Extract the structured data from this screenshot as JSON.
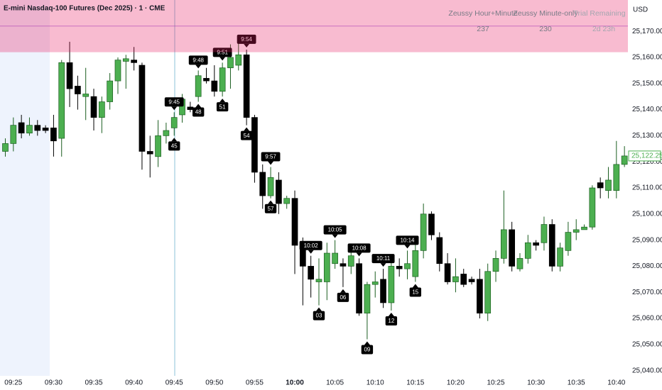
{
  "title": "E-mini Nasdaq-100 Futures (Dec 2025) · 1 · CME",
  "currency": "USD",
  "indicator_table": {
    "headers": [
      "Zeussy Hour+Minute",
      "Zeussy Minute-only",
      "Trial Remaining"
    ],
    "values": [
      "237",
      "230",
      "2d 23h"
    ]
  },
  "chart_data": {
    "type": "candlestick",
    "categories": [
      null,
      "09:25",
      null,
      null,
      null,
      null,
      "09:30",
      null,
      null,
      null,
      null,
      "09:35",
      null,
      null,
      null,
      null,
      "09:40",
      null,
      null,
      null,
      null,
      "09:45",
      null,
      null,
      null,
      null,
      "09:50",
      null,
      null,
      null,
      null,
      "09:55",
      null,
      null,
      null,
      null,
      "10:00",
      null,
      null,
      null,
      null,
      "10:05",
      null,
      null,
      null,
      null,
      "10:10",
      null,
      null,
      null,
      null,
      "10:15",
      null,
      null,
      null,
      null,
      "10:20",
      null,
      null,
      null,
      null,
      "10:25",
      null,
      null,
      null,
      null,
      "10:30",
      null,
      null,
      null,
      null,
      "10:35",
      null,
      null,
      null,
      null,
      "10:40",
      null
    ],
    "open": [
      25124,
      25127,
      25135,
      25131,
      25134,
      25133,
      25133,
      25129,
      25158,
      25149,
      25145,
      25145,
      25137,
      25143,
      25151,
      25158.5,
      25159,
      25157,
      25124,
      25122,
      25130,
      25133,
      25138,
      25141,
      25145,
      25152,
      25151,
      25147,
      25156,
      25157,
      25161,
      25137,
      25116,
      25107,
      25113,
      25104,
      25106,
      25088,
      25080,
      25074,
      25074,
      25081,
      25081,
      25080,
      25081,
      25062,
      25073,
      25075,
      25066,
      25080,
      25079,
      25076,
      25086,
      25100,
      25091,
      25081,
      25074,
      25077,
      25075,
      25075,
      25062,
      25078,
      25083,
      25094,
      25079,
      25083,
      25089,
      25089,
      25096,
      25080,
      25086,
      25093,
      25094,
      25095,
      25112,
      25109,
      25109,
      25119
    ],
    "high": [
      25129,
      25137,
      25138,
      25137,
      25136,
      25134,
      25138,
      25159,
      25166,
      25153,
      25156,
      25148,
      25145,
      25154,
      25160,
      25161,
      25164,
      25158,
      25130,
      25136,
      25135,
      25139,
      25146,
      25143,
      25155,
      25156,
      25157,
      25158,
      25165,
      25167,
      25163,
      25138,
      25119,
      25118,
      25116,
      25107,
      25109,
      25091,
      25084,
      25083,
      25089,
      25090,
      25083,
      25086,
      25083,
      25074,
      25078,
      25079,
      25082,
      25083,
      25086,
      25090,
      25104,
      25101,
      25093,
      25085,
      25083,
      25079,
      25076,
      25079,
      25081,
      25086,
      25109,
      25097,
      25085,
      25092,
      25090,
      25099,
      25098,
      25089,
      25097,
      25098,
      25096,
      25111,
      25114,
      25118,
      25128,
      25126
    ],
    "low": [
      25122,
      25124,
      25129,
      25130,
      25130,
      25131,
      25122,
      25122,
      25141,
      25140,
      25136,
      25132,
      25131,
      25140,
      25146,
      25148,
      25155,
      25117,
      25114,
      25118,
      25127,
      25130,
      25135,
      25139,
      25143,
      25150,
      25145,
      25145,
      25148,
      25155,
      25134,
      25112,
      25102,
      25106,
      25100,
      25102,
      25077,
      25065,
      25068,
      25065,
      25067,
      25079,
      25072,
      25077,
      25061,
      25052,
      25068,
      25064,
      25063,
      25076,
      25075,
      25074,
      25083,
      25090,
      25078,
      25073,
      25070,
      25072,
      25073,
      25060,
      25059,
      25074,
      25081,
      25078,
      25078,
      25081,
      25086,
      25086,
      25078,
      25078,
      25084,
      25090,
      25094,
      25094,
      25106,
      25106,
      25106,
      25118
    ],
    "close": [
      25127,
      25134,
      25131,
      25134,
      25132,
      25132,
      25128,
      25158,
      25148,
      25146,
      25146,
      25137,
      25143,
      25151,
      25159,
      25159.5,
      25158,
      25124,
      25123,
      25130,
      25132,
      25137,
      25144,
      25140,
      25153,
      25151,
      25147,
      25156,
      25160,
      25161,
      25137,
      25116,
      25107,
      25114,
      25104,
      25106,
      25088,
      25080,
      25075,
      25075,
      25085,
      25085,
      25080,
      25084,
      25062,
      25073,
      25074,
      25066,
      25080,
      25079,
      25081,
      25086,
      25100,
      25092,
      25081,
      25074,
      25076,
      25073,
      25074,
      25062,
      25078,
      25083,
      25094,
      25080,
      25083,
      25089,
      25088,
      25096,
      25080,
      25087,
      25093,
      25094,
      25095,
      25110,
      25110,
      25113,
      25119,
      25122.25
    ],
    "up_color": "#4caf50",
    "down_color": "#000000",
    "ylim": [
      25038,
      25182
    ],
    "yticks": [
      {
        "value": 25040,
        "label": "25,040.00"
      },
      {
        "value": 25050,
        "label": "25,050.00"
      },
      {
        "value": 25060,
        "label": "25,060.00"
      },
      {
        "value": 25070,
        "label": "25,070.00"
      },
      {
        "value": 25080,
        "label": "25,080.00"
      },
      {
        "value": 25090,
        "label": "25,090.00"
      },
      {
        "value": 25100,
        "label": "25,100.00"
      },
      {
        "value": 25110,
        "label": "25,110.00"
      },
      {
        "value": 25120,
        "label": "25,120.00"
      },
      {
        "value": 25130,
        "label": "25,130.00"
      },
      {
        "value": 25140,
        "label": "25,140.00"
      },
      {
        "value": 25150,
        "label": "25,150.00"
      },
      {
        "value": 25160,
        "label": "25,160.00"
      },
      {
        "value": 25170,
        "label": "25,170.00"
      }
    ],
    "last_price": {
      "value": 25122.25,
      "label": "25,122.25"
    },
    "zone": {
      "from": 25162,
      "line": 25172,
      "color": "#e91e63"
    },
    "annotations": [
      {
        "text": "9:45",
        "candle": 21,
        "position": "above"
      },
      {
        "text": "45",
        "candle": 21,
        "position": "below"
      },
      {
        "text": "9:48",
        "candle": 24,
        "position": "above"
      },
      {
        "text": "48",
        "candle": 24,
        "position": "below"
      },
      {
        "text": "9:51",
        "candle": 27,
        "position": "above"
      },
      {
        "text": "51",
        "candle": 27,
        "position": "below"
      },
      {
        "text": "9:54",
        "candle": 30,
        "position": "above"
      },
      {
        "text": "54",
        "candle": 30,
        "position": "below"
      },
      {
        "text": "9:57",
        "candle": 33,
        "position": "above"
      },
      {
        "text": "57",
        "candle": 33,
        "position": "below"
      },
      {
        "text": "10:02",
        "candle": 38,
        "position": "above"
      },
      {
        "text": "03",
        "candle": 39,
        "position": "below"
      },
      {
        "text": "10:05",
        "candle": 41,
        "position": "above"
      },
      {
        "text": "06",
        "candle": 42,
        "position": "below"
      },
      {
        "text": "10:08",
        "candle": 44,
        "position": "above"
      },
      {
        "text": "09",
        "candle": 45,
        "position": "below"
      },
      {
        "text": "10:11",
        "candle": 47,
        "position": "above"
      },
      {
        "text": "12",
        "candle": 48,
        "position": "below"
      },
      {
        "text": "10:14",
        "candle": 50,
        "position": "above"
      },
      {
        "text": "15",
        "candle": 51,
        "position": "below"
      }
    ]
  }
}
